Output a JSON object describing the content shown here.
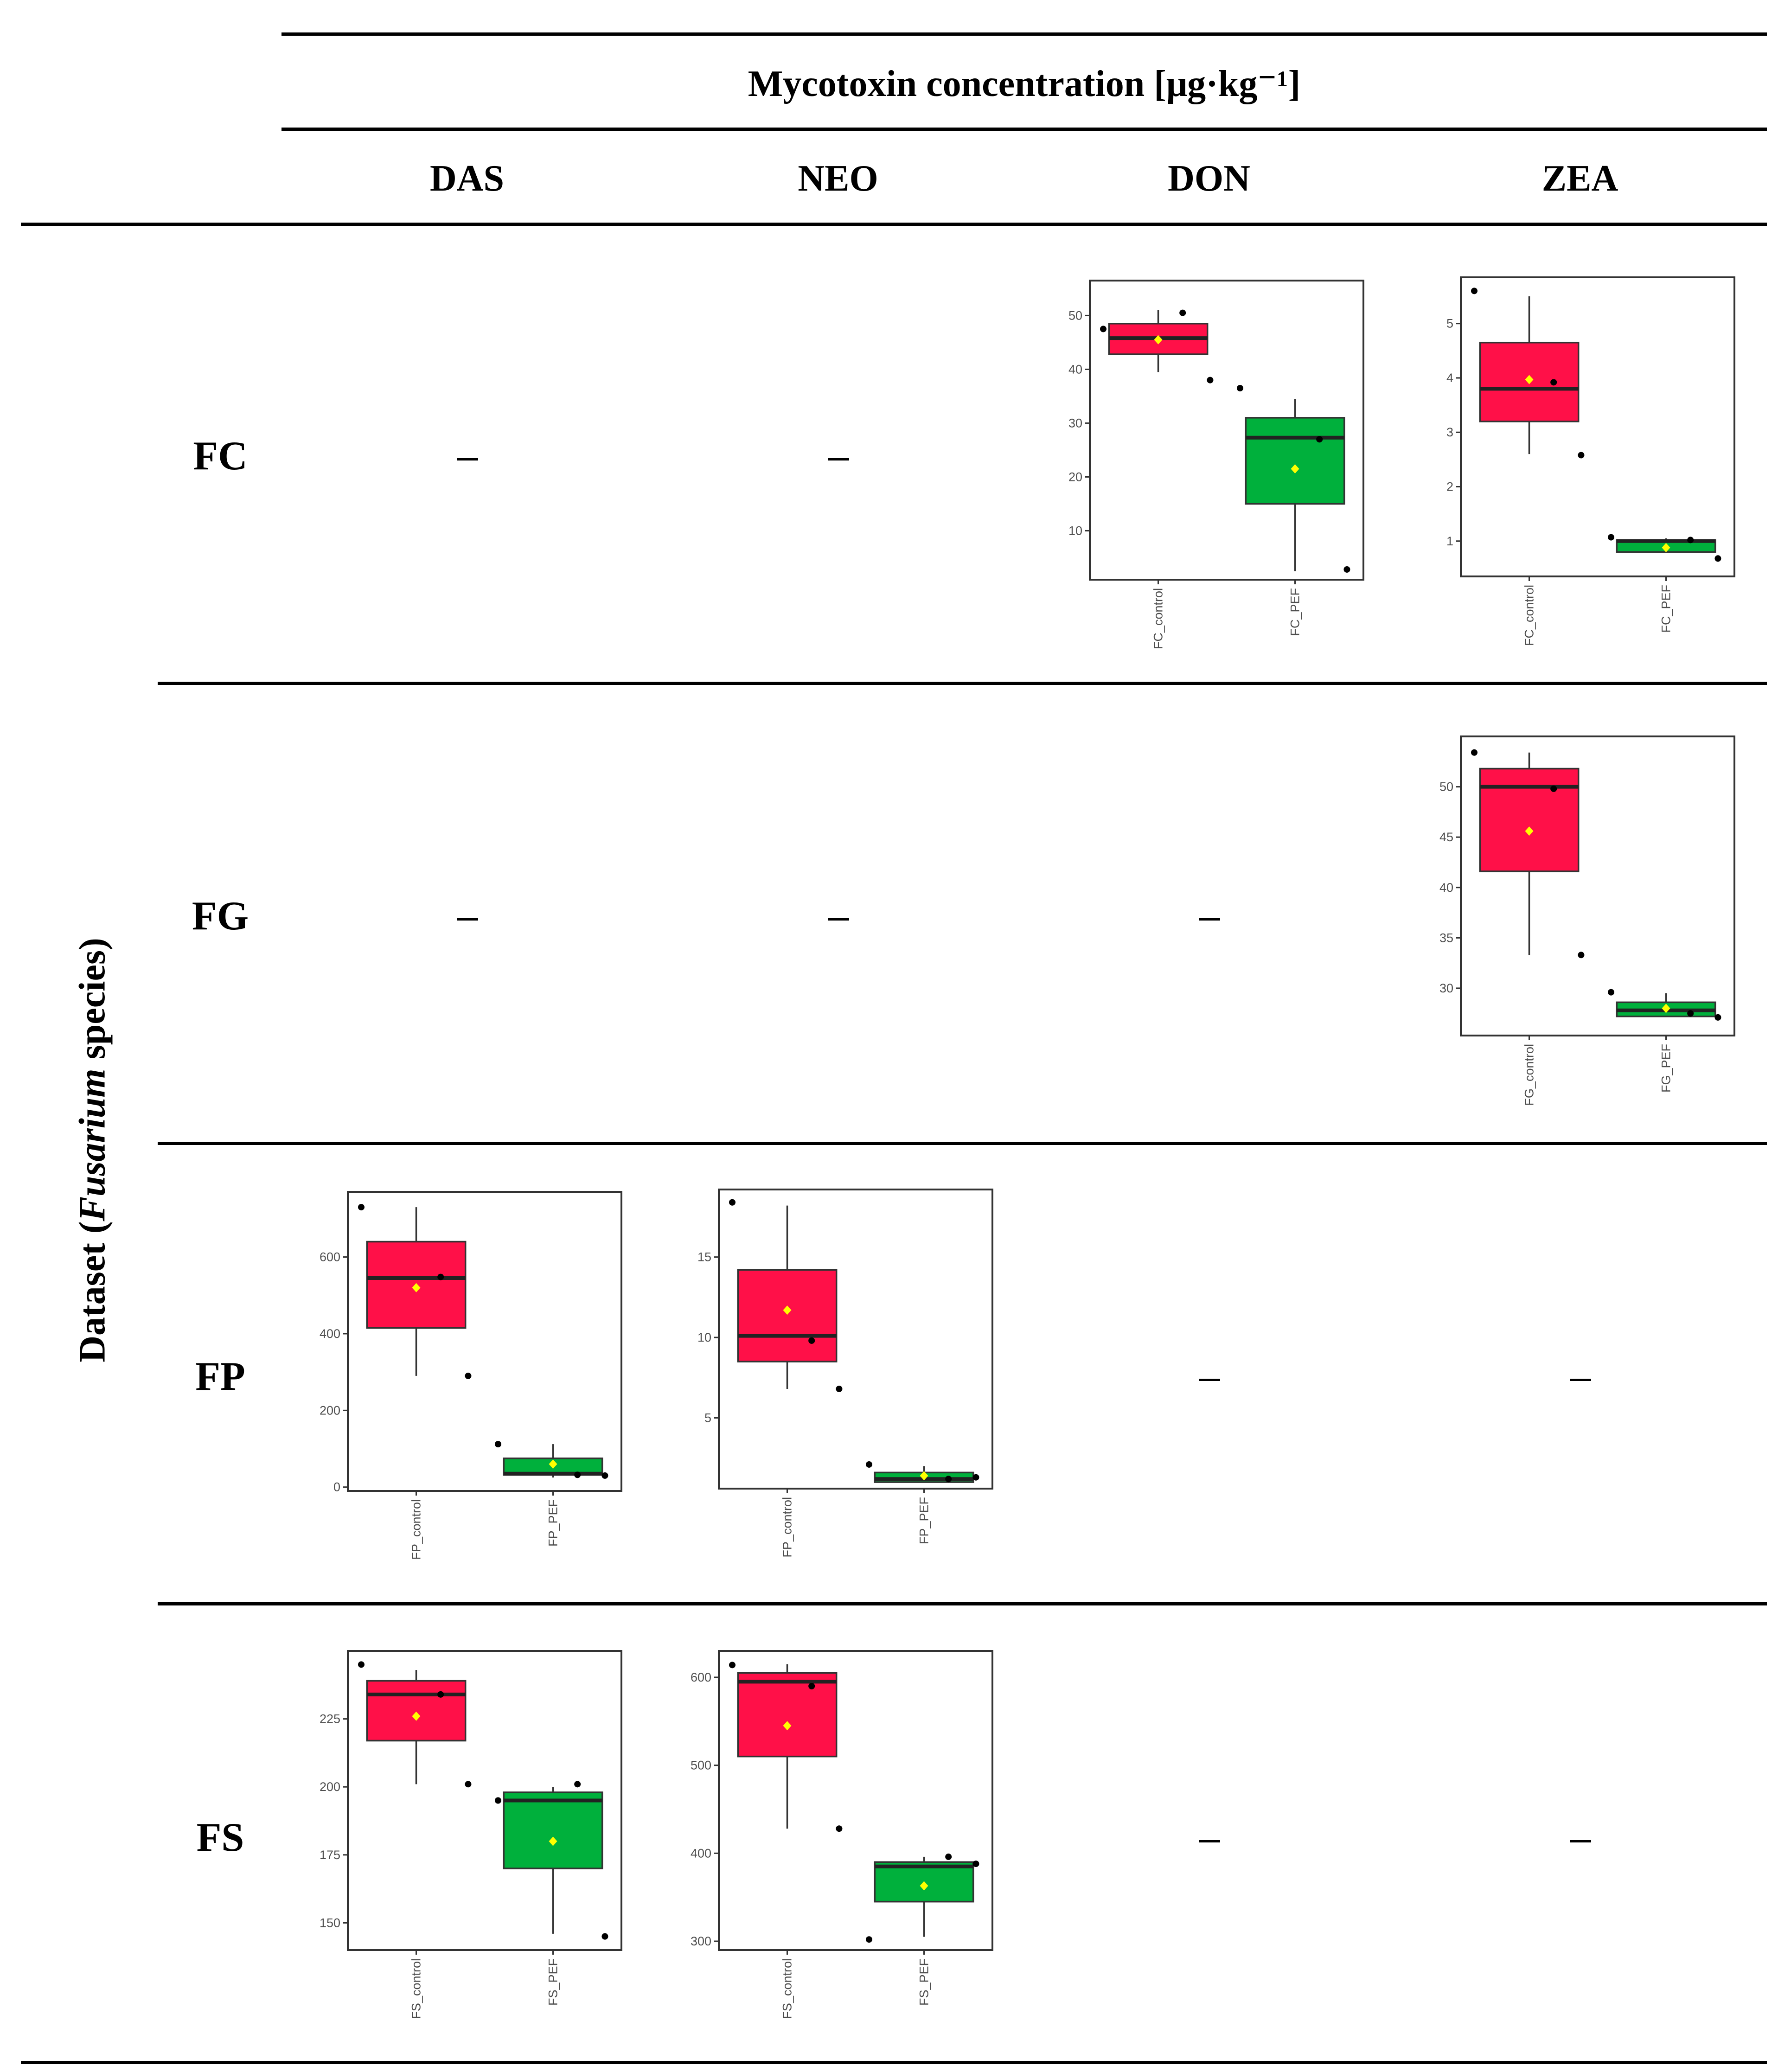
{
  "table": {
    "column_group_header": "Mycotoxin concentration [μg·kg⁻¹]",
    "columns": [
      "DAS",
      "NEO",
      "DON",
      "ZEA"
    ],
    "row_axis_label_prefix": "Dataset (",
    "row_axis_label_italic": "Fusarium",
    "row_axis_label_suffix": " species)",
    "rows": [
      "FC",
      "FG",
      "FP",
      "FS"
    ],
    "empty_cell": "–"
  },
  "colors": {
    "control": "#ff1048",
    "pef": "#00b03c",
    "mean": "#ffff00",
    "point": "#000000"
  },
  "chart_data": [
    {
      "id": "FC-DON",
      "type": "box",
      "ylim": [
        0.9,
        56.5
      ],
      "yticks": [
        10,
        20,
        30,
        40,
        50
      ],
      "groups": [
        {
          "label": "FC_control",
          "min": 39.5,
          "q1": 42.8,
          "median": 45.8,
          "q3": 48.5,
          "max": 51.0,
          "mean": 45.5,
          "points": [
            47.5,
            50.5,
            38.0
          ]
        },
        {
          "label": "FC_PEF",
          "min": 2.5,
          "q1": 15.0,
          "median": 27.3,
          "q3": 31.0,
          "max": 34.5,
          "mean": 21.5,
          "points": [
            36.5,
            27.0,
            2.8
          ]
        }
      ]
    },
    {
      "id": "FC-ZEA",
      "type": "box",
      "ylim": [
        0.35,
        5.85
      ],
      "yticks": [
        1,
        2,
        3,
        4,
        5
      ],
      "groups": [
        {
          "label": "FC_control",
          "min": 2.6,
          "q1": 3.2,
          "median": 3.8,
          "q3": 4.65,
          "max": 5.5,
          "mean": 3.97,
          "points": [
            5.6,
            3.92,
            2.58
          ]
        },
        {
          "label": "FC_PEF",
          "min": 0.8,
          "q1": 0.8,
          "median": 1.0,
          "q3": 1.02,
          "max": 1.05,
          "mean": 0.88,
          "points": [
            1.07,
            1.02,
            0.68
          ]
        }
      ]
    },
    {
      "id": "FG-ZEA",
      "type": "box",
      "ylim": [
        25.3,
        55.0
      ],
      "yticks": [
        30,
        35,
        40,
        45,
        50
      ],
      "groups": [
        {
          "label": "FG_control",
          "min": 33.3,
          "q1": 41.6,
          "median": 50.0,
          "q3": 51.8,
          "max": 53.4,
          "mean": 45.6,
          "points": [
            53.4,
            49.8,
            33.3
          ]
        },
        {
          "label": "FG_PEF",
          "min": 27.2,
          "q1": 27.2,
          "median": 27.8,
          "q3": 28.6,
          "max": 29.5,
          "mean": 28.0,
          "points": [
            29.6,
            27.5,
            27.1
          ]
        }
      ]
    },
    {
      "id": "FP-DAS",
      "type": "box",
      "ylim": [
        -10,
        770
      ],
      "yticks": [
        0,
        200,
        400,
        600
      ],
      "groups": [
        {
          "label": "FP_control",
          "min": 290,
          "q1": 415,
          "median": 545,
          "q3": 640,
          "max": 730,
          "mean": 520,
          "points": [
            730,
            548,
            290
          ]
        },
        {
          "label": "FP_PEF",
          "min": 25,
          "q1": 32,
          "median": 35,
          "q3": 75,
          "max": 112,
          "mean": 60,
          "points": [
            112,
            32,
            30
          ]
        }
      ]
    },
    {
      "id": "FP-NEO",
      "type": "box",
      "ylim": [
        0.6,
        19.2
      ],
      "yticks": [
        5,
        10,
        15
      ],
      "groups": [
        {
          "label": "FP_control",
          "min": 6.8,
          "q1": 8.5,
          "median": 10.1,
          "q3": 14.2,
          "max": 18.2,
          "mean": 11.7,
          "points": [
            18.4,
            9.8,
            6.8
          ]
        },
        {
          "label": "FP_PEF",
          "min": 1.0,
          "q1": 1.0,
          "median": 1.2,
          "q3": 1.6,
          "max": 2.0,
          "mean": 1.4,
          "points": [
            2.1,
            1.2,
            1.3
          ]
        }
      ]
    },
    {
      "id": "FS-DAS",
      "type": "box",
      "ylim": [
        140,
        250
      ],
      "yticks": [
        150,
        175,
        200,
        225
      ],
      "groups": [
        {
          "label": "FS_control",
          "min": 201,
          "q1": 217,
          "median": 234,
          "q3": 239,
          "max": 243,
          "mean": 226,
          "points": [
            245,
            234,
            201
          ]
        },
        {
          "label": "FS_PEF",
          "min": 146,
          "q1": 170,
          "median": 195,
          "q3": 198,
          "max": 200,
          "mean": 180,
          "points": [
            195,
            201,
            145
          ]
        }
      ]
    },
    {
      "id": "FS-NEO",
      "type": "box",
      "ylim": [
        290,
        630
      ],
      "yticks": [
        300,
        400,
        500,
        600
      ],
      "groups": [
        {
          "label": "FS_control",
          "min": 428,
          "q1": 510,
          "median": 595,
          "q3": 605,
          "max": 615,
          "mean": 545,
          "points": [
            614,
            590,
            428
          ]
        },
        {
          "label": "FS_PEF",
          "min": 305,
          "q1": 345,
          "median": 385,
          "q3": 390,
          "max": 396,
          "mean": 363,
          "points": [
            302,
            396,
            388
          ]
        }
      ]
    }
  ]
}
